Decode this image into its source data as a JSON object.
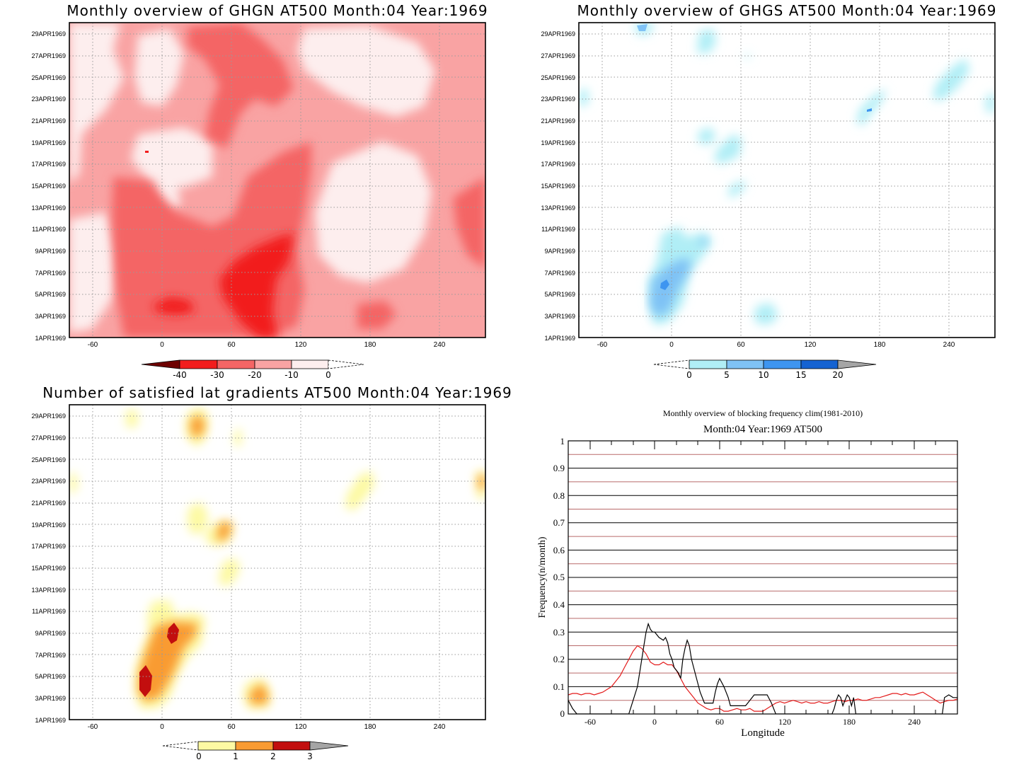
{
  "colors": {
    "ghgn": [
      "#fdeeee",
      "#f9a3a3",
      "#f46565",
      "#f21d1d",
      "#6e0000"
    ],
    "ghgs": [
      "#b0eef6",
      "#7fc2f5",
      "#3e95f0",
      "#1563d2",
      "#a5a5a5"
    ],
    "grad": [
      "#fdf9a3",
      "#f99b32",
      "#c20e0e",
      "#a5a5a5"
    ],
    "black_line": "#000000",
    "red_line": "#e31b1b"
  },
  "charts": [
    {
      "id": "ghgn",
      "title": "Monthly overview of GHGN AT500 Month:04 Year:1969",
      "x_ticks": [
        "-60",
        "0",
        "60",
        "120",
        "180",
        "240"
      ],
      "y_ticks": [
        "1APR1969",
        "3APR1969",
        "5APR1969",
        "7APR1969",
        "9APR1969",
        "11APR1969",
        "13APR1969",
        "15APR1969",
        "17APR1969",
        "19APR1969",
        "21APR1969",
        "23APR1969",
        "25APR1969",
        "27APR1969",
        "29APR1969"
      ],
      "colorbar": {
        "labels": [
          "-40",
          "-30",
          "-20",
          "-10",
          "0"
        ]
      }
    },
    {
      "id": "ghgs",
      "title": "Monthly overview of GHGS AT500 Month:04 Year:1969",
      "x_ticks": [
        "-60",
        "0",
        "60",
        "120",
        "180",
        "240"
      ],
      "y_ticks": [
        "1APR1969",
        "3APR1969",
        "5APR1969",
        "7APR1969",
        "9APR1969",
        "11APR1969",
        "13APR1969",
        "15APR1969",
        "17APR1969",
        "19APR1969",
        "21APR1969",
        "23APR1969",
        "25APR1969",
        "27APR1969",
        "29APR1969"
      ],
      "colorbar": {
        "labels": [
          "0",
          "5",
          "10",
          "15",
          "20"
        ]
      }
    },
    {
      "id": "grad",
      "title": "Number of satisfied lat gradients AT500 Month:04 Year:1969",
      "x_ticks": [
        "-60",
        "0",
        "60",
        "120",
        "180",
        "240"
      ],
      "y_ticks": [
        "1APR1969",
        "3APR1969",
        "5APR1969",
        "7APR1969",
        "9APR1969",
        "11APR1969",
        "13APR1969",
        "15APR1969",
        "17APR1969",
        "19APR1969",
        "21APR1969",
        "23APR1969",
        "25APR1969",
        "27APR1969",
        "29APR1969"
      ],
      "colorbar": {
        "labels": [
          "0",
          "1",
          "2",
          "3"
        ]
      }
    },
    {
      "id": "freq",
      "title": "Monthly overview of blocking frequency clim(1981-2010)",
      "subtitle": "Month:04 Year:1969  AT500",
      "xlabel": "Longitude",
      "ylabel": "Frequency(n/month)",
      "x_ticks": [
        "-60",
        "0",
        "60",
        "120",
        "180",
        "240"
      ],
      "y_ticks": [
        "0",
        "0.1",
        "0.2",
        "0.3",
        "0.4",
        "0.5",
        "0.6",
        "0.7",
        "0.8",
        "0.9",
        "1"
      ]
    }
  ],
  "chart_data": {
    "type": "line",
    "xlim": [
      -80,
      280
    ],
    "ylim": [
      0,
      1
    ],
    "series": [
      {
        "color": "black",
        "x": [
          -80,
          -76,
          -72,
          -68,
          -60,
          -50,
          -40,
          -30,
          -24,
          -20,
          -16,
          -12,
          -10,
          -8,
          -6,
          -4,
          -2,
          0,
          4,
          8,
          10,
          12,
          14,
          16,
          18,
          22,
          24,
          26,
          28,
          30,
          32,
          34,
          38,
          42,
          46,
          50,
          54,
          56,
          58,
          60,
          64,
          68,
          70,
          72,
          76,
          80,
          84,
          88,
          92,
          96,
          100,
          104,
          108,
          112,
          116,
          120,
          124,
          128,
          132,
          136,
          140,
          144,
          148,
          152,
          156,
          160,
          164,
          166,
          168,
          170,
          172,
          174,
          176,
          178,
          180,
          182,
          184,
          186,
          190,
          196,
          200,
          210,
          220,
          230,
          240,
          250,
          260,
          266,
          268,
          272,
          276,
          280
        ],
        "y": [
          0.05,
          0.02,
          0,
          0,
          0,
          0,
          0,
          0,
          0,
          0.05,
          0.1,
          0.2,
          0.25,
          0.3,
          0.33,
          0.31,
          0.3,
          0.3,
          0.28,
          0.27,
          0.28,
          0.26,
          0.22,
          0.2,
          0.17,
          0.15,
          0.13,
          0.2,
          0.24,
          0.27,
          0.25,
          0.2,
          0.14,
          0.08,
          0.04,
          0.04,
          0.04,
          0.08,
          0.11,
          0.13,
          0.1,
          0.06,
          0.03,
          0.03,
          0.03,
          0.03,
          0.03,
          0.05,
          0.07,
          0.07,
          0.07,
          0.07,
          0.04,
          0,
          0,
          0,
          0,
          0,
          0,
          0,
          0,
          0,
          0,
          0,
          0,
          0,
          0,
          0.02,
          0.05,
          0.07,
          0.06,
          0.03,
          0.05,
          0.07,
          0.06,
          0.03,
          0.06,
          0,
          0,
          0,
          0,
          0,
          0,
          0,
          0,
          0,
          0,
          0,
          0.06,
          0.07,
          0.06,
          0.06
        ]
      },
      {
        "color": "red",
        "x": [
          -80,
          -76,
          -72,
          -68,
          -64,
          -60,
          -56,
          -52,
          -48,
          -44,
          -40,
          -36,
          -32,
          -28,
          -24,
          -20,
          -16,
          -12,
          -8,
          -4,
          0,
          4,
          8,
          12,
          16,
          20,
          24,
          28,
          32,
          36,
          40,
          44,
          48,
          52,
          56,
          60,
          64,
          68,
          72,
          76,
          80,
          84,
          88,
          92,
          96,
          100,
          104,
          108,
          112,
          116,
          120,
          124,
          128,
          132,
          136,
          140,
          144,
          148,
          152,
          156,
          160,
          164,
          168,
          172,
          176,
          180,
          184,
          188,
          192,
          196,
          200,
          204,
          208,
          212,
          216,
          220,
          224,
          228,
          232,
          236,
          240,
          244,
          248,
          252,
          256,
          260,
          264,
          268,
          272,
          276,
          280
        ],
        "y": [
          0.07,
          0.075,
          0.075,
          0.07,
          0.075,
          0.075,
          0.07,
          0.075,
          0.08,
          0.09,
          0.1,
          0.12,
          0.14,
          0.17,
          0.2,
          0.23,
          0.25,
          0.24,
          0.22,
          0.19,
          0.18,
          0.18,
          0.19,
          0.18,
          0.18,
          0.16,
          0.13,
          0.1,
          0.08,
          0.06,
          0.04,
          0.03,
          0.02,
          0.015,
          0.02,
          0.02,
          0.01,
          0.01,
          0.015,
          0.02,
          0.015,
          0.015,
          0.02,
          0.01,
          0.01,
          0.01,
          0.02,
          0.03,
          0.04,
          0.045,
          0.04,
          0.045,
          0.05,
          0.045,
          0.04,
          0.045,
          0.04,
          0.04,
          0.045,
          0.04,
          0.04,
          0.045,
          0.05,
          0.05,
          0.045,
          0.05,
          0.05,
          0.055,
          0.05,
          0.05,
          0.055,
          0.06,
          0.06,
          0.065,
          0.07,
          0.075,
          0.075,
          0.07,
          0.075,
          0.07,
          0.07,
          0.075,
          0.08,
          0.07,
          0.06,
          0.05,
          0.04,
          0.045,
          0.05,
          0.05,
          0.055
        ]
      }
    ]
  }
}
